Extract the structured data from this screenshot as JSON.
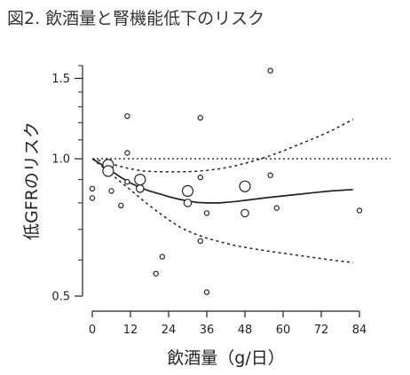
{
  "title": "図2. 飲酒量と腎機能低下のリスク",
  "chart_data": {
    "type": "scatter",
    "title": "図2. 飲酒量と腎機能低下のリスク",
    "xlabel": "飲酒量（g/日）",
    "ylabel": "低GFRのリスク",
    "xlim": [
      0,
      84
    ],
    "ylim": [
      0.5,
      1.6
    ],
    "y_scale": "log",
    "x_ticks": [
      "0",
      "12",
      "24",
      "36",
      "48",
      "60",
      "72",
      "84"
    ],
    "y_ticks": [
      "0.5",
      "1.0",
      "1.5"
    ],
    "reference_line": 1.0,
    "grid": false,
    "points": [
      {
        "x": 0,
        "y": 0.86,
        "size": "small"
      },
      {
        "x": 0,
        "y": 0.82,
        "size": "small"
      },
      {
        "x": 5,
        "y": 0.97,
        "size": "large"
      },
      {
        "x": 5,
        "y": 0.94,
        "size": "large"
      },
      {
        "x": 6,
        "y": 0.85,
        "size": "small"
      },
      {
        "x": 9,
        "y": 0.79,
        "size": "small"
      },
      {
        "x": 11,
        "y": 0.89,
        "size": "small"
      },
      {
        "x": 11,
        "y": 1.24,
        "size": "small"
      },
      {
        "x": 11,
        "y": 1.03,
        "size": "small"
      },
      {
        "x": 15,
        "y": 0.9,
        "size": "large"
      },
      {
        "x": 15,
        "y": 0.86,
        "size": "medium"
      },
      {
        "x": 20,
        "y": 0.56,
        "size": "small"
      },
      {
        "x": 22,
        "y": 0.61,
        "size": "small"
      },
      {
        "x": 30,
        "y": 0.85,
        "size": "large"
      },
      {
        "x": 30,
        "y": 0.8,
        "size": "medium"
      },
      {
        "x": 34,
        "y": 1.23,
        "size": "small"
      },
      {
        "x": 34,
        "y": 0.91,
        "size": "small"
      },
      {
        "x": 34,
        "y": 0.66,
        "size": "small"
      },
      {
        "x": 36,
        "y": 0.76,
        "size": "small"
      },
      {
        "x": 36,
        "y": 0.51,
        "size": "small"
      },
      {
        "x": 48,
        "y": 0.87,
        "size": "large"
      },
      {
        "x": 48,
        "y": 0.76,
        "size": "medium"
      },
      {
        "x": 56,
        "y": 1.56,
        "size": "small"
      },
      {
        "x": 56,
        "y": 0.92,
        "size": "small"
      },
      {
        "x": 58,
        "y": 0.78,
        "size": "small"
      },
      {
        "x": 84,
        "y": 0.77,
        "size": "small"
      }
    ],
    "series": [
      {
        "style": "solid",
        "x": [
          0,
          3,
          6,
          9,
          12,
          15,
          18,
          21,
          24,
          27,
          30,
          33,
          36,
          40,
          45,
          50,
          55,
          60,
          65,
          70,
          75,
          82
        ],
        "y": [
          1.0,
          0.97,
          0.94,
          0.91,
          0.885,
          0.865,
          0.85,
          0.838,
          0.826,
          0.816,
          0.808,
          0.802,
          0.8,
          0.8,
          0.806,
          0.814,
          0.822,
          0.829,
          0.836,
          0.843,
          0.85,
          0.856
        ]
      },
      {
        "style": "dashed",
        "x": [
          0,
          4,
          8,
          12,
          16,
          20,
          24,
          28,
          32,
          36,
          40,
          45,
          50,
          55,
          60,
          65,
          70,
          75,
          82
        ],
        "y": [
          1.0,
          0.985,
          0.965,
          0.95,
          0.94,
          0.937,
          0.936,
          0.936,
          0.938,
          0.943,
          0.95,
          0.965,
          0.985,
          1.01,
          1.04,
          1.075,
          1.11,
          1.15,
          1.22
        ]
      },
      {
        "style": "dashed",
        "x": [
          0,
          4,
          8,
          12,
          16,
          20,
          24,
          28,
          32,
          36,
          40,
          45,
          50,
          55,
          60,
          65,
          70,
          75,
          82
        ],
        "y": [
          1.0,
          0.95,
          0.9,
          0.855,
          0.81,
          0.77,
          0.735,
          0.705,
          0.685,
          0.67,
          0.658,
          0.645,
          0.636,
          0.628,
          0.621,
          0.614,
          0.607,
          0.6,
          0.592
        ]
      }
    ]
  }
}
